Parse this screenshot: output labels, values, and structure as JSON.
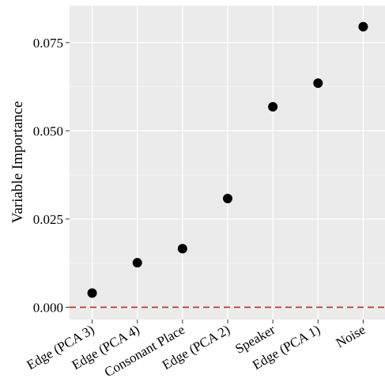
{
  "chart_data": {
    "type": "scatter",
    "title": "",
    "xlabel": "",
    "ylabel": "Variable Importance",
    "categories": [
      "Edge (PCA 3)",
      "Edge (PCA 4)",
      "Consonant Place",
      "Edge (PCA 2)",
      "Speaker",
      "Edge (PCA 1)",
      "Noise"
    ],
    "values": [
      0.004,
      0.0126,
      0.0166,
      0.0308,
      0.0568,
      0.0635,
      0.0795
    ],
    "yticks": [
      0.0,
      0.025,
      0.05,
      0.075
    ],
    "ytick_labels": [
      "0.000",
      "0.025",
      "0.050",
      "0.075"
    ],
    "ylim": [
      -0.0035,
      0.0855
    ],
    "reference_line": {
      "y": 0,
      "style": "dashed",
      "color": "#e41a1c"
    },
    "grid": true,
    "panel_background": "#ebebeb",
    "point_color": "#000000",
    "legend": "none"
  }
}
